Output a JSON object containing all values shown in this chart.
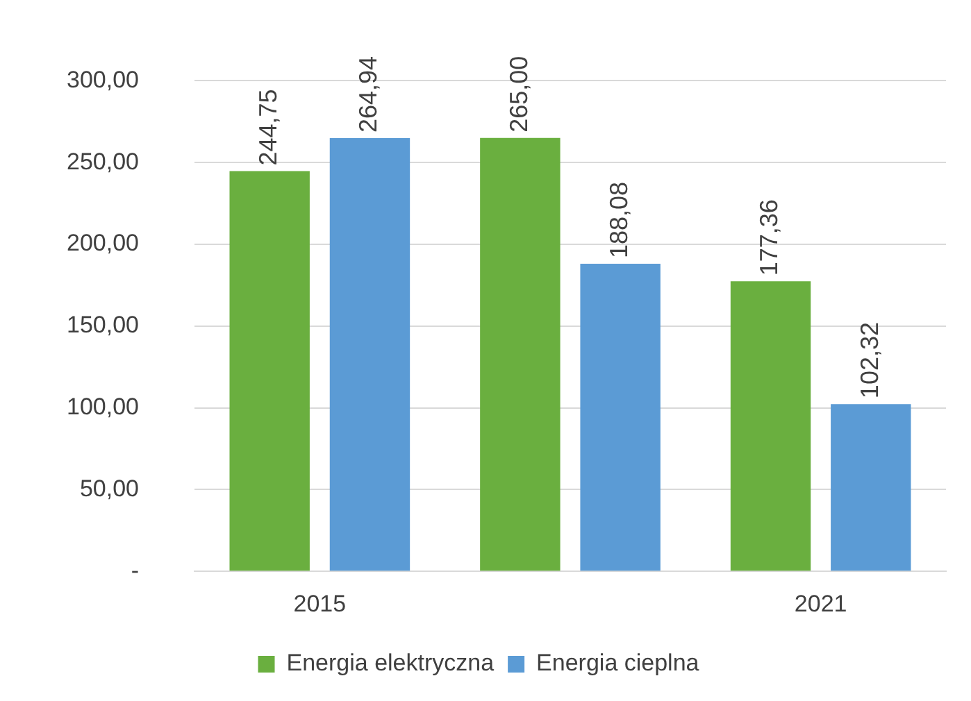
{
  "chart_data": {
    "type": "bar",
    "categories": [
      "2015",
      null,
      "2021"
    ],
    "series": [
      {
        "name": "Energia elektryczna",
        "color": "#6aaf3f",
        "values": [
          244.75,
          265.0,
          177.36
        ],
        "value_labels": [
          "244,75",
          "265,00",
          "177,36"
        ]
      },
      {
        "name": "Energia cieplna",
        "color": "#5b9bd5",
        "values": [
          264.94,
          188.08,
          102.32
        ],
        "value_labels": [
          "264,94",
          "188,08",
          "102,32"
        ]
      }
    ],
    "ylim": [
      0,
      300
    ],
    "yticks": [
      {
        "value": 0,
        "label": "-"
      },
      {
        "value": 50,
        "label": "50,00"
      },
      {
        "value": 100,
        "label": "100,00"
      },
      {
        "value": 150,
        "label": "150,00"
      },
      {
        "value": 200,
        "label": "200,00"
      },
      {
        "value": 250,
        "label": "250,00"
      },
      {
        "value": 300,
        "label": "300,00"
      }
    ],
    "grid": "y",
    "legend": "bottom"
  }
}
